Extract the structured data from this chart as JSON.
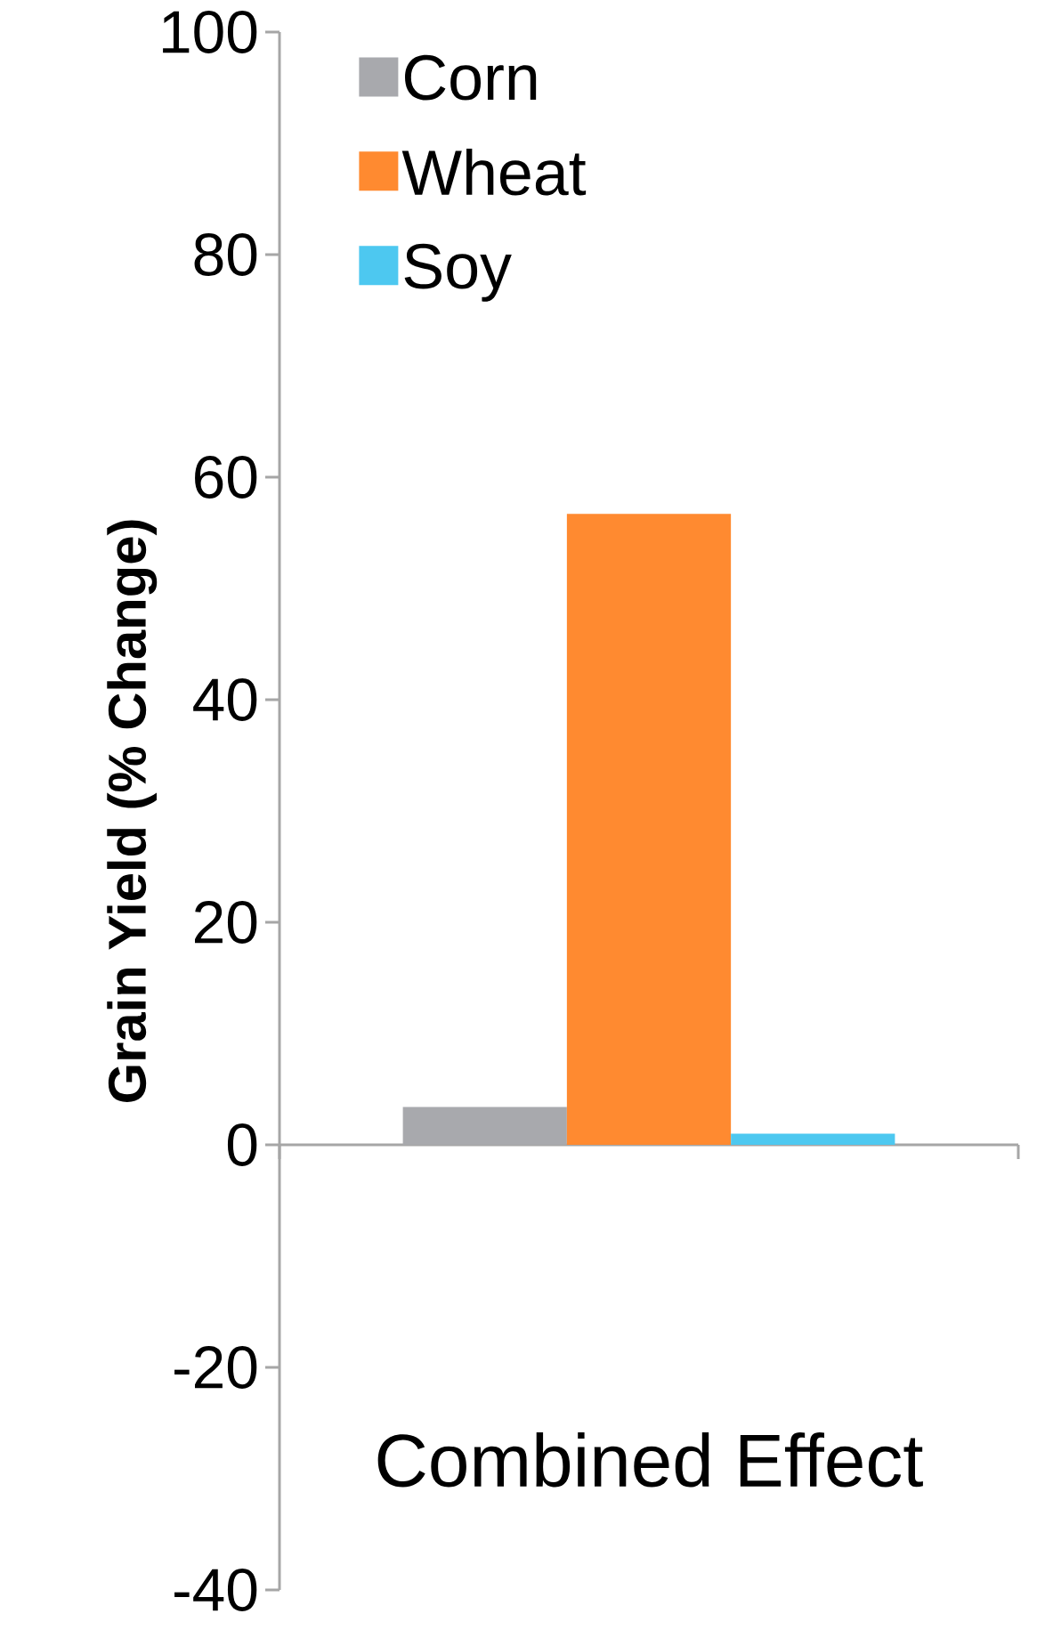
{
  "chart_data": {
    "type": "bar",
    "ylabel": "Grain Yield (% Change)",
    "categories": [
      "Combined Effect"
    ],
    "series": [
      {
        "name": "Corn",
        "color": "#a8a9ad",
        "values": [
          3.4
        ]
      },
      {
        "name": "Wheat",
        "color": "#ff8a30",
        "values": [
          56.7
        ]
      },
      {
        "name": "Soy",
        "color": "#4dc8f0",
        "values": [
          1.0
        ]
      }
    ],
    "ylim": [
      -40,
      100
    ],
    "yticks": [
      -40,
      -20,
      0,
      20,
      40,
      60,
      80,
      100
    ],
    "legend": "top left"
  }
}
